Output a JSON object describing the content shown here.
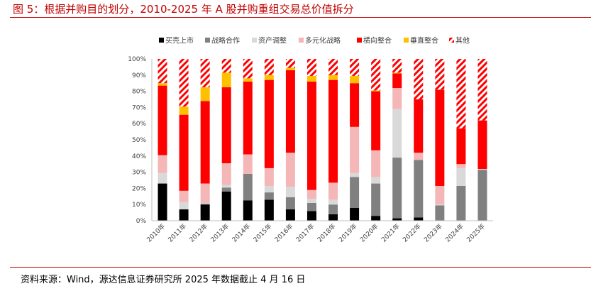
{
  "title": "图 5：根据并购目的划分，2010-2025 年 A 股并购重组交易总价值拆分",
  "source": "资料来源：Wind，源达信息证券研究所 2025 年数据截止 4 月 16 日",
  "chart_data": {
    "type": "bar",
    "stacked": true,
    "categories": [
      "2010年",
      "2011年",
      "2012年",
      "2013年",
      "2014年",
      "2015年",
      "2016年",
      "2017年",
      "2018年",
      "2019年",
      "2020年",
      "2021年",
      "2022年",
      "2023年",
      "2024年",
      "2025年"
    ],
    "series": [
      {
        "name": "买壳上市",
        "color": "#000000",
        "pattern": "solid",
        "values": [
          23,
          7,
          10,
          18,
          12.5,
          13,
          7,
          6,
          4,
          8,
          3,
          1.5,
          2,
          0,
          0,
          0
        ]
      },
      {
        "name": "战略合作",
        "color": "#808080",
        "pattern": "solid",
        "values": [
          0,
          0,
          0.5,
          2.5,
          16.5,
          4.5,
          7.5,
          5,
          6,
          19,
          20,
          37.5,
          35.5,
          9.5,
          21.5,
          31.5
        ]
      },
      {
        "name": "资产调整",
        "color": "#d9d9d9",
        "pattern": "solid",
        "values": [
          6.5,
          4.5,
          0.5,
          1.5,
          0,
          4,
          6.5,
          2.5,
          3,
          2.5,
          4,
          30,
          0,
          0.5,
          11,
          0.5
        ]
      },
      {
        "name": "多元化战略",
        "color": "#f4b6b6",
        "pattern": "solid",
        "values": [
          11,
          7,
          12,
          13.5,
          12,
          11,
          21,
          5.5,
          10.5,
          28.5,
          16.5,
          13,
          4.5,
          11.5,
          2.5,
          0
        ]
      },
      {
        "name": "横向整合",
        "color": "#ff0000",
        "pattern": "solid",
        "values": [
          43,
          47,
          51,
          47,
          45,
          54.5,
          51,
          67,
          63.5,
          27,
          36.5,
          9,
          33,
          59.5,
          22,
          30
        ]
      },
      {
        "name": "垂直整合",
        "color": "#ffc000",
        "pattern": "solid",
        "values": [
          1.5,
          5,
          8.5,
          9,
          2,
          3,
          1.5,
          3.5,
          3,
          4.5,
          0.5,
          0.5,
          0,
          0,
          0,
          0
        ]
      },
      {
        "name": "其他",
        "color": "#ff0000",
        "pattern": "hatch",
        "values": [
          15,
          29.5,
          17.5,
          8.5,
          12,
          10,
          5.5,
          10.5,
          10,
          10.5,
          19.5,
          8.5,
          25,
          19,
          43,
          38
        ]
      }
    ],
    "ylim": [
      0,
      100
    ],
    "yticks": [
      "0%",
      "10%",
      "20%",
      "30%",
      "40%",
      "50%",
      "60%",
      "70%",
      "80%",
      "90%",
      "100%"
    ],
    "legend_position": "top",
    "grid": false
  }
}
